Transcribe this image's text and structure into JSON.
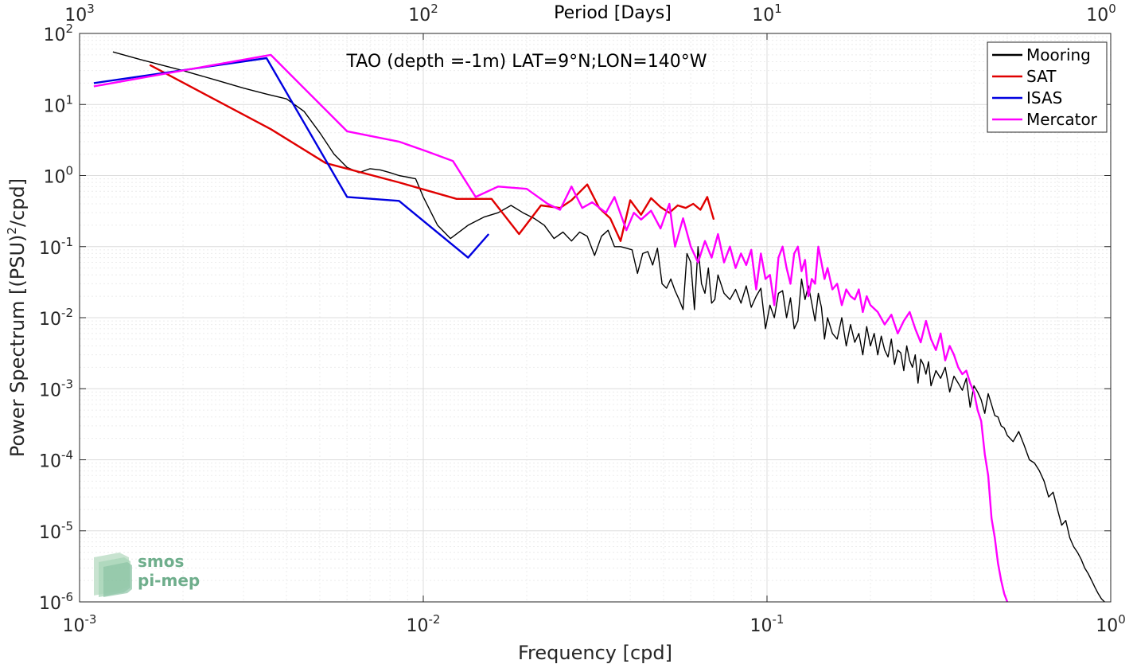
{
  "chart_data": {
    "type": "line",
    "title": "TAO (depth =-1m) LAT=9°N;LON=140°W",
    "xlabel": "Frequency [cpd]",
    "ylabel": "Power Spectrum [(PSU)",
    "ylabel_sup": "2",
    "ylabel_tail": "/cpd]",
    "top_xlabel": "Period [Days]",
    "xscale": "log",
    "yscale": "log",
    "xlim": [
      0.001,
      1
    ],
    "ylim": [
      1e-06,
      100
    ],
    "grid": true,
    "legend_position": "top-right",
    "x_ticks": [
      {
        "value": 0.001,
        "base": "10",
        "exp": "-3"
      },
      {
        "value": 0.01,
        "base": "10",
        "exp": "-2"
      },
      {
        "value": 0.1,
        "base": "10",
        "exp": "-1"
      },
      {
        "value": 1,
        "base": "10",
        "exp": "0"
      }
    ],
    "y_ticks": [
      {
        "value": 1e-06,
        "base": "10",
        "exp": "-6"
      },
      {
        "value": 1e-05,
        "base": "10",
        "exp": "-5"
      },
      {
        "value": 0.0001,
        "base": "10",
        "exp": "-4"
      },
      {
        "value": 0.001,
        "base": "10",
        "exp": "-3"
      },
      {
        "value": 0.01,
        "base": "10",
        "exp": "-2"
      },
      {
        "value": 0.1,
        "base": "10",
        "exp": "-1"
      },
      {
        "value": 1,
        "base": "10",
        "exp": "0"
      },
      {
        "value": 10,
        "base": "10",
        "exp": "1"
      },
      {
        "value": 100,
        "base": "10",
        "exp": "2"
      }
    ],
    "top_ticks": [
      {
        "period": 1000,
        "base": "10",
        "exp": "3"
      },
      {
        "period": 100,
        "base": "10",
        "exp": "2"
      },
      {
        "period": 10,
        "base": "10",
        "exp": "1"
      },
      {
        "period": 1,
        "base": "10",
        "exp": "0"
      }
    ],
    "series": [
      {
        "name": "Mooring",
        "color": "#000000",
        "x": [
          0.00125,
          0.0015,
          0.002,
          0.0025,
          0.003,
          0.0035,
          0.004,
          0.0045,
          0.005,
          0.0055,
          0.006,
          0.0065,
          0.007,
          0.0075,
          0.008,
          0.0085,
          0.009,
          0.0095,
          0.01,
          0.011,
          0.012,
          0.0135,
          0.015,
          0.0165,
          0.018,
          0.0195,
          0.021,
          0.0225,
          0.024,
          0.0255,
          0.027,
          0.0285,
          0.03,
          0.0315,
          0.033,
          0.0345,
          0.036,
          0.0375,
          0.039,
          0.0405,
          0.042,
          0.0435,
          0.045,
          0.0465,
          0.048,
          0.0495,
          0.051,
          0.0525,
          0.054,
          0.0555,
          0.057,
          0.0585,
          0.06,
          0.0615,
          0.063,
          0.0645,
          0.066,
          0.0675,
          0.069,
          0.0705,
          0.072,
          0.075,
          0.078,
          0.081,
          0.084,
          0.087,
          0.09,
          0.093,
          0.096,
          0.099,
          0.102,
          0.105,
          0.108,
          0.111,
          0.114,
          0.117,
          0.12,
          0.123,
          0.126,
          0.129,
          0.132,
          0.135,
          0.138,
          0.141,
          0.144,
          0.147,
          0.15,
          0.155,
          0.16,
          0.165,
          0.17,
          0.175,
          0.18,
          0.185,
          0.19,
          0.195,
          0.2,
          0.205,
          0.21,
          0.215,
          0.22,
          0.225,
          0.23,
          0.235,
          0.24,
          0.245,
          0.25,
          0.255,
          0.26,
          0.265,
          0.27,
          0.275,
          0.28,
          0.285,
          0.29,
          0.295,
          0.3,
          0.31,
          0.32,
          0.33,
          0.34,
          0.35,
          0.36,
          0.37,
          0.38,
          0.39,
          0.4,
          0.41,
          0.42,
          0.43,
          0.44,
          0.45,
          0.46,
          0.47,
          0.48,
          0.49,
          0.5,
          0.52,
          0.54,
          0.56,
          0.58,
          0.6,
          0.62,
          0.64,
          0.66,
          0.68,
          0.7,
          0.72,
          0.74,
          0.76,
          0.78,
          0.8,
          0.82,
          0.84,
          0.86,
          0.88,
          0.9,
          0.92,
          0.94,
          0.96
        ],
        "y": [
          55,
          43,
          30,
          22,
          17,
          14,
          12,
          8,
          4,
          2,
          1.3,
          1.1,
          1.25,
          1.2,
          1.1,
          1.0,
          0.95,
          0.9,
          0.5,
          0.2,
          0.13,
          0.2,
          0.26,
          0.3,
          0.38,
          0.3,
          0.25,
          0.2,
          0.13,
          0.16,
          0.12,
          0.16,
          0.14,
          0.075,
          0.14,
          0.17,
          0.1,
          0.1,
          0.095,
          0.09,
          0.042,
          0.08,
          0.085,
          0.055,
          0.095,
          0.03,
          0.026,
          0.035,
          0.024,
          0.018,
          0.013,
          0.08,
          0.06,
          0.013,
          0.1,
          0.03,
          0.022,
          0.05,
          0.016,
          0.018,
          0.04,
          0.022,
          0.018,
          0.025,
          0.016,
          0.028,
          0.014,
          0.02,
          0.026,
          0.007,
          0.015,
          0.01,
          0.022,
          0.024,
          0.01,
          0.019,
          0.007,
          0.009,
          0.035,
          0.018,
          0.028,
          0.016,
          0.009,
          0.022,
          0.014,
          0.005,
          0.01,
          0.006,
          0.005,
          0.01,
          0.004,
          0.008,
          0.0045,
          0.006,
          0.003,
          0.0075,
          0.004,
          0.006,
          0.003,
          0.0055,
          0.0035,
          0.0028,
          0.005,
          0.0022,
          0.0035,
          0.0032,
          0.0018,
          0.004,
          0.0025,
          0.002,
          0.003,
          0.0012,
          0.0026,
          0.0022,
          0.0016,
          0.0024,
          0.0011,
          0.0018,
          0.0014,
          0.002,
          0.0009,
          0.0015,
          0.0012,
          0.00095,
          0.0014,
          0.00055,
          0.0011,
          0.0009,
          0.0007,
          0.00045,
          0.00085,
          0.0006,
          0.00042,
          0.0004,
          0.0003,
          0.00028,
          0.00022,
          0.00018,
          0.00025,
          0.00016,
          0.0001,
          9e-05,
          7e-05,
          5e-05,
          3e-05,
          3.5e-05,
          2e-05,
          1.2e-05,
          1.4e-05,
          8e-06,
          6e-06,
          5e-06,
          4e-06,
          3e-06,
          2.5e-06,
          2e-06,
          1.6e-06,
          1.3e-06,
          1.1e-06,
          1e-06
        ]
      },
      {
        "name": "SAT",
        "color": "#e00000",
        "x": [
          0.0016,
          0.0036,
          0.0052,
          0.0085,
          0.0125,
          0.0158,
          0.019,
          0.022,
          0.025,
          0.027,
          0.03,
          0.0325,
          0.035,
          0.0375,
          0.04,
          0.043,
          0.046,
          0.049,
          0.052,
          0.055,
          0.058,
          0.061,
          0.064,
          0.067,
          0.07
        ],
        "y": [
          36,
          4.5,
          1.5,
          0.8,
          0.47,
          0.47,
          0.15,
          0.38,
          0.35,
          0.45,
          0.75,
          0.35,
          0.25,
          0.12,
          0.45,
          0.28,
          0.48,
          0.36,
          0.3,
          0.38,
          0.35,
          0.4,
          0.33,
          0.5,
          0.24
        ]
      },
      {
        "name": "ISAS",
        "color": "#0000e0",
        "x": [
          0.0011,
          0.0035,
          0.006,
          0.0085,
          0.0135,
          0.0155
        ],
        "y": [
          20,
          45,
          0.5,
          0.44,
          0.07,
          0.15
        ]
      },
      {
        "name": "Mercator",
        "color": "#ff00ff",
        "x": [
          0.0011,
          0.0036,
          0.006,
          0.0085,
          0.0102,
          0.0122,
          0.0142,
          0.0165,
          0.02,
          0.023,
          0.025,
          0.027,
          0.029,
          0.031,
          0.034,
          0.036,
          0.039,
          0.041,
          0.043,
          0.046,
          0.049,
          0.052,
          0.054,
          0.057,
          0.06,
          0.063,
          0.066,
          0.069,
          0.072,
          0.075,
          0.078,
          0.081,
          0.084,
          0.087,
          0.09,
          0.093,
          0.096,
          0.099,
          0.102,
          0.105,
          0.108,
          0.111,
          0.114,
          0.117,
          0.12,
          0.123,
          0.126,
          0.129,
          0.132,
          0.135,
          0.138,
          0.141,
          0.144,
          0.147,
          0.15,
          0.155,
          0.16,
          0.165,
          0.17,
          0.175,
          0.18,
          0.185,
          0.19,
          0.195,
          0.2,
          0.21,
          0.22,
          0.23,
          0.24,
          0.25,
          0.26,
          0.27,
          0.28,
          0.29,
          0.3,
          0.31,
          0.32,
          0.33,
          0.34,
          0.35,
          0.36,
          0.37,
          0.38,
          0.39,
          0.4,
          0.41,
          0.42,
          0.43,
          0.44,
          0.45,
          0.46,
          0.47,
          0.48,
          0.49,
          0.5
        ],
        "y": [
          18,
          50,
          4.2,
          3,
          2.2,
          1.6,
          0.5,
          0.7,
          0.65,
          0.4,
          0.33,
          0.7,
          0.35,
          0.42,
          0.3,
          0.5,
          0.17,
          0.3,
          0.24,
          0.32,
          0.18,
          0.4,
          0.1,
          0.25,
          0.1,
          0.06,
          0.12,
          0.07,
          0.15,
          0.06,
          0.1,
          0.05,
          0.08,
          0.055,
          0.09,
          0.025,
          0.08,
          0.035,
          0.04,
          0.015,
          0.07,
          0.1,
          0.05,
          0.03,
          0.08,
          0.1,
          0.045,
          0.065,
          0.02,
          0.035,
          0.03,
          0.1,
          0.06,
          0.035,
          0.05,
          0.025,
          0.03,
          0.015,
          0.025,
          0.02,
          0.018,
          0.025,
          0.012,
          0.02,
          0.015,
          0.012,
          0.008,
          0.011,
          0.006,
          0.009,
          0.012,
          0.007,
          0.0045,
          0.009,
          0.005,
          0.0035,
          0.006,
          0.0025,
          0.004,
          0.003,
          0.002,
          0.0016,
          0.0018,
          0.0012,
          0.0009,
          0.0005,
          0.00035,
          0.00012,
          6e-05,
          1.5e-05,
          8e-06,
          3.5e-06,
          2e-06,
          1.3e-06,
          1e-06
        ]
      }
    ]
  },
  "logo": {
    "line1": "smos",
    "line2": "pi-mep"
  }
}
